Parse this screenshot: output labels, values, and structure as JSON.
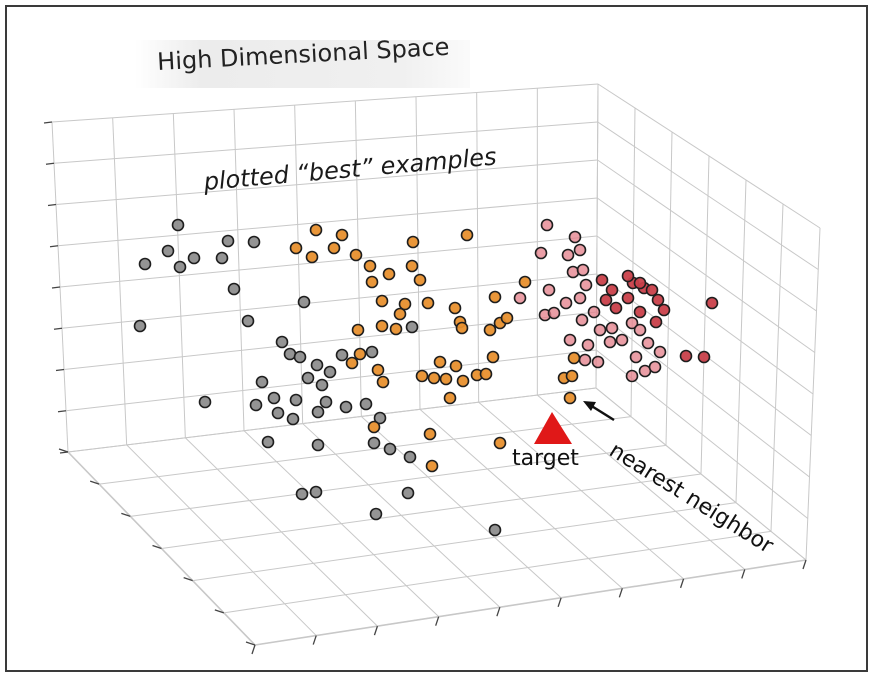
{
  "title": "High Dimensional Space",
  "labels": {
    "best_examples": "plotted “best” examples",
    "target": "target",
    "nearest_neighbor": "nearest neighbor"
  },
  "colors": {
    "gray": "#8e8e8e",
    "orange": "#e8902e",
    "pink": "#e37e88",
    "red": "#c9404a",
    "target": "#e01818",
    "grid": "#c8c8c8"
  },
  "legend_groups": [
    "gray",
    "orange",
    "red"
  ]
}
